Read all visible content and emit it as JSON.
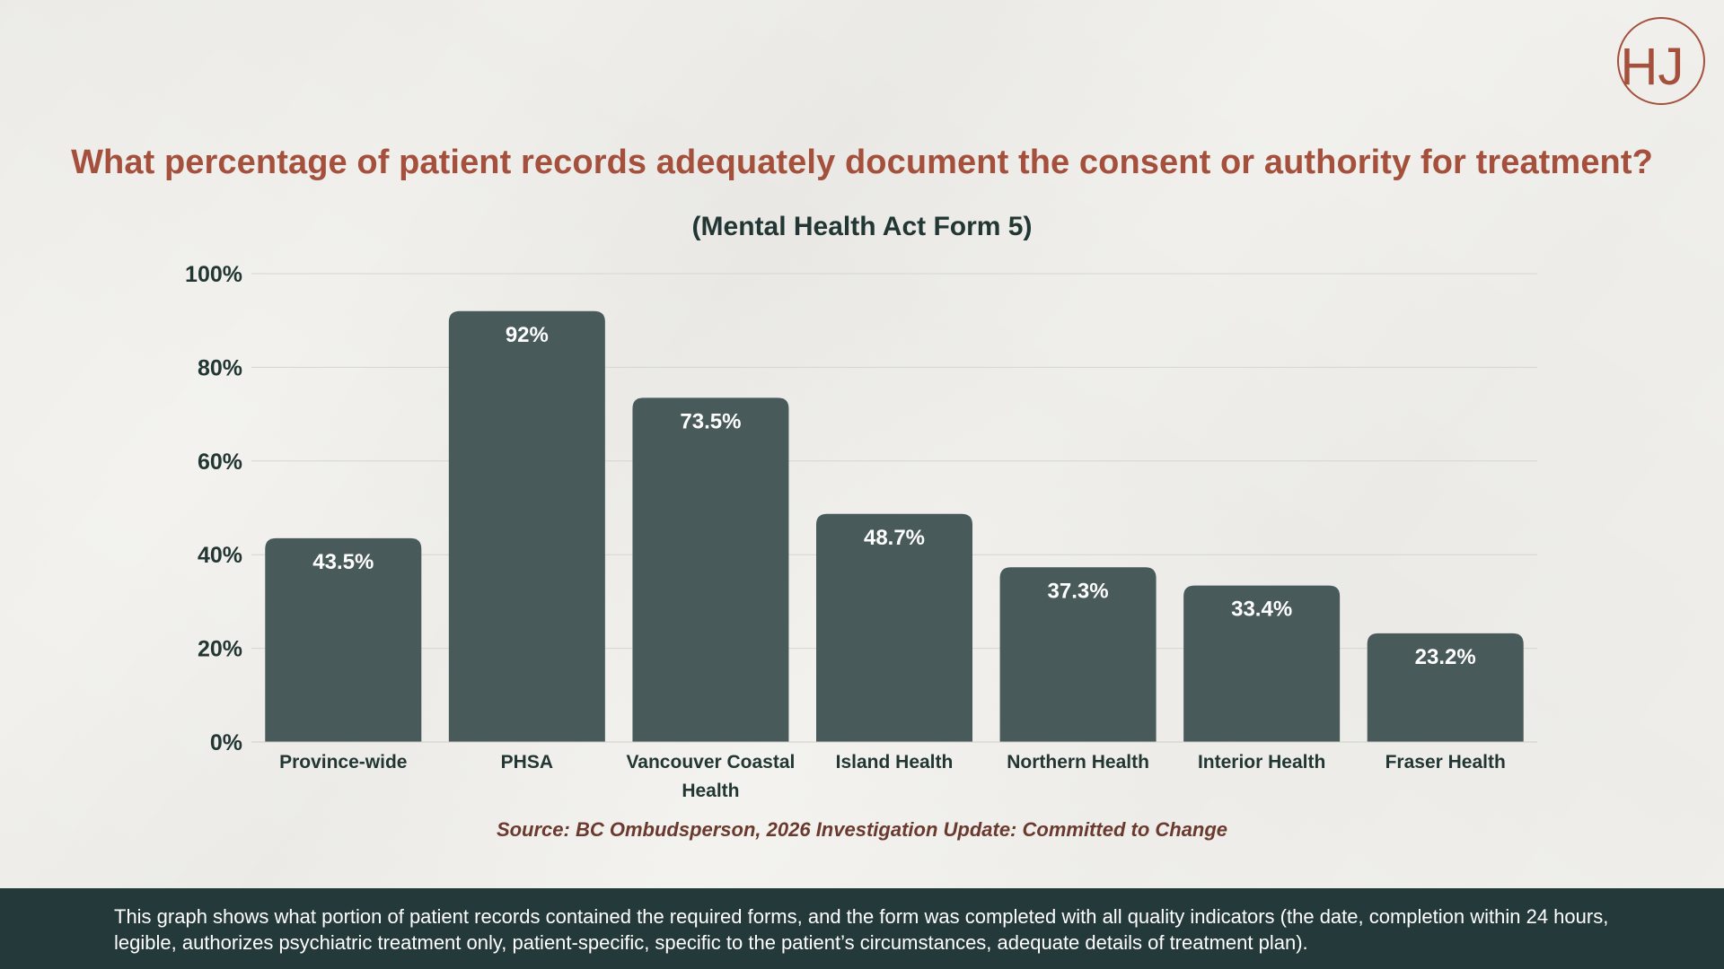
{
  "logo": {
    "text": "HJ"
  },
  "chart_data": {
    "type": "bar",
    "title": "What percentage of patient records adequately document the consent or authority for treatment?",
    "subtitle": "(Mental Health Act Form 5)",
    "categories": [
      "Province-wide",
      "PHSA",
      "Vancouver Coastal Health",
      "Island Health",
      "Northern Health",
      "Interior Health",
      "Fraser Health"
    ],
    "values": [
      43.5,
      92,
      73.5,
      48.7,
      37.3,
      33.4,
      23.2
    ],
    "data_labels": [
      "43.5%",
      "92%",
      "73.5%",
      "48.7%",
      "37.3%",
      "33.4%",
      "23.2%"
    ],
    "y_ticks": [
      "0%",
      "20%",
      "40%",
      "60%",
      "80%",
      "100%"
    ],
    "ylim": [
      0,
      100
    ],
    "xlabel": "",
    "ylabel": "",
    "grid": true,
    "bar_color": "#485a5a",
    "label_color": "#ffffff"
  },
  "source": "Source: BC Ombudsperson, 2026 Investigation Update: Committed to Change",
  "footer": {
    "text": "This graph shows what portion of patient records contained the required forms, and the form was completed with all quality indicators (the date, completion within 24 hours, legible, authorizes psychiatric treatment only, patient-specific, specific to the patient’s circumstances, adequate details of treatment plan)."
  },
  "colors": {
    "accent": "#a4503c",
    "dark": "#24393a",
    "background": "#f3f2ee"
  }
}
